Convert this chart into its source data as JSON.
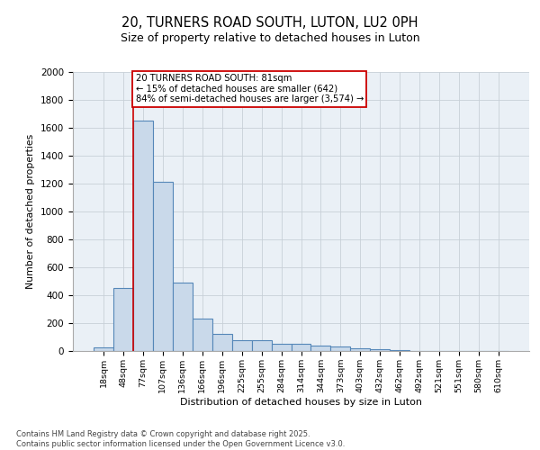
{
  "title1": "20, TURNERS ROAD SOUTH, LUTON, LU2 0PH",
  "title2": "Size of property relative to detached houses in Luton",
  "xlabel": "Distribution of detached houses by size in Luton",
  "ylabel": "Number of detached properties",
  "categories": [
    "18sqm",
    "48sqm",
    "77sqm",
    "107sqm",
    "136sqm",
    "166sqm",
    "196sqm",
    "225sqm",
    "255sqm",
    "284sqm",
    "314sqm",
    "344sqm",
    "373sqm",
    "403sqm",
    "432sqm",
    "462sqm",
    "492sqm",
    "521sqm",
    "551sqm",
    "580sqm",
    "610sqm"
  ],
  "values": [
    25,
    450,
    1650,
    1210,
    490,
    230,
    120,
    80,
    75,
    50,
    50,
    40,
    35,
    20,
    10,
    5,
    0,
    0,
    0,
    0,
    0
  ],
  "bar_color": "#c9d9ea",
  "bar_edge_color": "#5587b8",
  "grid_color": "#c8d0d8",
  "bg_color": "#eaf0f6",
  "red_line_index": 2,
  "annotation_text": "20 TURNERS ROAD SOUTH: 81sqm\n← 15% of detached houses are smaller (642)\n84% of semi-detached houses are larger (3,574) →",
  "annotation_box_color": "#cc0000",
  "ylim": [
    0,
    2000
  ],
  "yticks": [
    0,
    200,
    400,
    600,
    800,
    1000,
    1200,
    1400,
    1600,
    1800,
    2000
  ],
  "footer1": "Contains HM Land Registry data © Crown copyright and database right 2025.",
  "footer2": "Contains public sector information licensed under the Open Government Licence v3.0."
}
